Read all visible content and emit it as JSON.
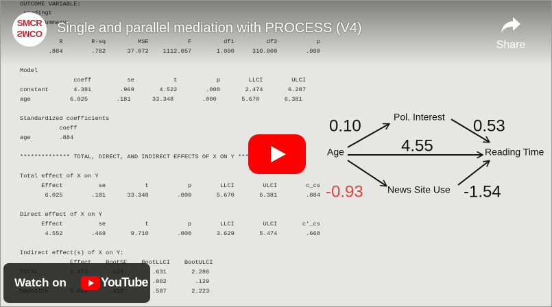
{
  "video": {
    "title": "Single and parallel mediation with PROCESS (V4)",
    "logo": {
      "top": "SMCR",
      "bottom": "SMCO"
    },
    "share": "Share",
    "watch_on": "Watch on",
    "youtube": "YouTube"
  },
  "output": {
    "lines": [
      "OUTCOME VARIABLE:",
      " readingt",
      "Model Summary",
      "           R        R-sq         MSE           F         df1         df2           p",
      "        .884        .782      37.072    1112.057       1.000     310.000        .000",
      "Model",
      "               coeff          se           t           p        LLCI        ULCI",
      "constant       4.381        .969       4.522        .000       2.474       6.287",
      "age           6.025        .181      33.348        .000       5.670       6.381",
      "Standardized coefficients",
      "           coeff",
      "age        .884",
      "************** TOTAL, DIRECT, AND INDIRECT EFFECTS OF X ON Y **************",
      "Total effect of X on Y",
      "      Effect          se           t           p        LLCI        ULCI        c_cs",
      "       6.025        .181      33.348        .000       5.670       6.381        .884",
      "Direct effect of X on Y",
      "      Effect          se           t           p        LLCI        ULCI       c'_cs",
      "       4.552        .469       9.710        .000       3.629       5.474        .668",
      "Indirect effect(s) of X on Y:",
      "              Effect    BootSE    BootLLCI    BootULCI",
      "TOTAL         1.474      .424        .631       2.286",
      "                                     .002        .129",
      "newssite      1.422      .416        .587       2.223"
    ]
  },
  "diagram": {
    "nodes": [
      "Age",
      "Pol. Interest",
      "News Site Use",
      "Reading Time"
    ],
    "coefficients": [
      "0.10",
      "0.53",
      "4.55",
      "-0.93",
      "-1.54"
    ]
  }
}
